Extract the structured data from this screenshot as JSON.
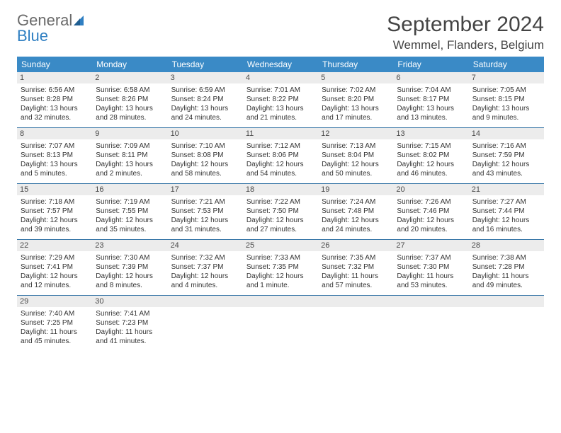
{
  "logo": {
    "word1": "General",
    "word2": "Blue"
  },
  "title": "September 2024",
  "location": "Wemmel, Flanders, Belgium",
  "colors": {
    "header_bg": "#3a8ac6",
    "row_divider": "#3a78a8",
    "daynum_bg": "#ececec",
    "text": "#333333",
    "logo_gray": "#6a6a6a",
    "logo_blue": "#2f7fc2"
  },
  "weekdays": [
    "Sunday",
    "Monday",
    "Tuesday",
    "Wednesday",
    "Thursday",
    "Friday",
    "Saturday"
  ],
  "weeks": [
    [
      {
        "n": "1",
        "sr": "Sunrise: 6:56 AM",
        "ss": "Sunset: 8:28 PM",
        "d1": "Daylight: 13 hours",
        "d2": "and 32 minutes."
      },
      {
        "n": "2",
        "sr": "Sunrise: 6:58 AM",
        "ss": "Sunset: 8:26 PM",
        "d1": "Daylight: 13 hours",
        "d2": "and 28 minutes."
      },
      {
        "n": "3",
        "sr": "Sunrise: 6:59 AM",
        "ss": "Sunset: 8:24 PM",
        "d1": "Daylight: 13 hours",
        "d2": "and 24 minutes."
      },
      {
        "n": "4",
        "sr": "Sunrise: 7:01 AM",
        "ss": "Sunset: 8:22 PM",
        "d1": "Daylight: 13 hours",
        "d2": "and 21 minutes."
      },
      {
        "n": "5",
        "sr": "Sunrise: 7:02 AM",
        "ss": "Sunset: 8:20 PM",
        "d1": "Daylight: 13 hours",
        "d2": "and 17 minutes."
      },
      {
        "n": "6",
        "sr": "Sunrise: 7:04 AM",
        "ss": "Sunset: 8:17 PM",
        "d1": "Daylight: 13 hours",
        "d2": "and 13 minutes."
      },
      {
        "n": "7",
        "sr": "Sunrise: 7:05 AM",
        "ss": "Sunset: 8:15 PM",
        "d1": "Daylight: 13 hours",
        "d2": "and 9 minutes."
      }
    ],
    [
      {
        "n": "8",
        "sr": "Sunrise: 7:07 AM",
        "ss": "Sunset: 8:13 PM",
        "d1": "Daylight: 13 hours",
        "d2": "and 5 minutes."
      },
      {
        "n": "9",
        "sr": "Sunrise: 7:09 AM",
        "ss": "Sunset: 8:11 PM",
        "d1": "Daylight: 13 hours",
        "d2": "and 2 minutes."
      },
      {
        "n": "10",
        "sr": "Sunrise: 7:10 AM",
        "ss": "Sunset: 8:08 PM",
        "d1": "Daylight: 12 hours",
        "d2": "and 58 minutes."
      },
      {
        "n": "11",
        "sr": "Sunrise: 7:12 AM",
        "ss": "Sunset: 8:06 PM",
        "d1": "Daylight: 12 hours",
        "d2": "and 54 minutes."
      },
      {
        "n": "12",
        "sr": "Sunrise: 7:13 AM",
        "ss": "Sunset: 8:04 PM",
        "d1": "Daylight: 12 hours",
        "d2": "and 50 minutes."
      },
      {
        "n": "13",
        "sr": "Sunrise: 7:15 AM",
        "ss": "Sunset: 8:02 PM",
        "d1": "Daylight: 12 hours",
        "d2": "and 46 minutes."
      },
      {
        "n": "14",
        "sr": "Sunrise: 7:16 AM",
        "ss": "Sunset: 7:59 PM",
        "d1": "Daylight: 12 hours",
        "d2": "and 43 minutes."
      }
    ],
    [
      {
        "n": "15",
        "sr": "Sunrise: 7:18 AM",
        "ss": "Sunset: 7:57 PM",
        "d1": "Daylight: 12 hours",
        "d2": "and 39 minutes."
      },
      {
        "n": "16",
        "sr": "Sunrise: 7:19 AM",
        "ss": "Sunset: 7:55 PM",
        "d1": "Daylight: 12 hours",
        "d2": "and 35 minutes."
      },
      {
        "n": "17",
        "sr": "Sunrise: 7:21 AM",
        "ss": "Sunset: 7:53 PM",
        "d1": "Daylight: 12 hours",
        "d2": "and 31 minutes."
      },
      {
        "n": "18",
        "sr": "Sunrise: 7:22 AM",
        "ss": "Sunset: 7:50 PM",
        "d1": "Daylight: 12 hours",
        "d2": "and 27 minutes."
      },
      {
        "n": "19",
        "sr": "Sunrise: 7:24 AM",
        "ss": "Sunset: 7:48 PM",
        "d1": "Daylight: 12 hours",
        "d2": "and 24 minutes."
      },
      {
        "n": "20",
        "sr": "Sunrise: 7:26 AM",
        "ss": "Sunset: 7:46 PM",
        "d1": "Daylight: 12 hours",
        "d2": "and 20 minutes."
      },
      {
        "n": "21",
        "sr": "Sunrise: 7:27 AM",
        "ss": "Sunset: 7:44 PM",
        "d1": "Daylight: 12 hours",
        "d2": "and 16 minutes."
      }
    ],
    [
      {
        "n": "22",
        "sr": "Sunrise: 7:29 AM",
        "ss": "Sunset: 7:41 PM",
        "d1": "Daylight: 12 hours",
        "d2": "and 12 minutes."
      },
      {
        "n": "23",
        "sr": "Sunrise: 7:30 AM",
        "ss": "Sunset: 7:39 PM",
        "d1": "Daylight: 12 hours",
        "d2": "and 8 minutes."
      },
      {
        "n": "24",
        "sr": "Sunrise: 7:32 AM",
        "ss": "Sunset: 7:37 PM",
        "d1": "Daylight: 12 hours",
        "d2": "and 4 minutes."
      },
      {
        "n": "25",
        "sr": "Sunrise: 7:33 AM",
        "ss": "Sunset: 7:35 PM",
        "d1": "Daylight: 12 hours",
        "d2": "and 1 minute."
      },
      {
        "n": "26",
        "sr": "Sunrise: 7:35 AM",
        "ss": "Sunset: 7:32 PM",
        "d1": "Daylight: 11 hours",
        "d2": "and 57 minutes."
      },
      {
        "n": "27",
        "sr": "Sunrise: 7:37 AM",
        "ss": "Sunset: 7:30 PM",
        "d1": "Daylight: 11 hours",
        "d2": "and 53 minutes."
      },
      {
        "n": "28",
        "sr": "Sunrise: 7:38 AM",
        "ss": "Sunset: 7:28 PM",
        "d1": "Daylight: 11 hours",
        "d2": "and 49 minutes."
      }
    ],
    [
      {
        "n": "29",
        "sr": "Sunrise: 7:40 AM",
        "ss": "Sunset: 7:25 PM",
        "d1": "Daylight: 11 hours",
        "d2": "and 45 minutes."
      },
      {
        "n": "30",
        "sr": "Sunrise: 7:41 AM",
        "ss": "Sunset: 7:23 PM",
        "d1": "Daylight: 11 hours",
        "d2": "and 41 minutes."
      },
      null,
      null,
      null,
      null,
      null
    ]
  ]
}
